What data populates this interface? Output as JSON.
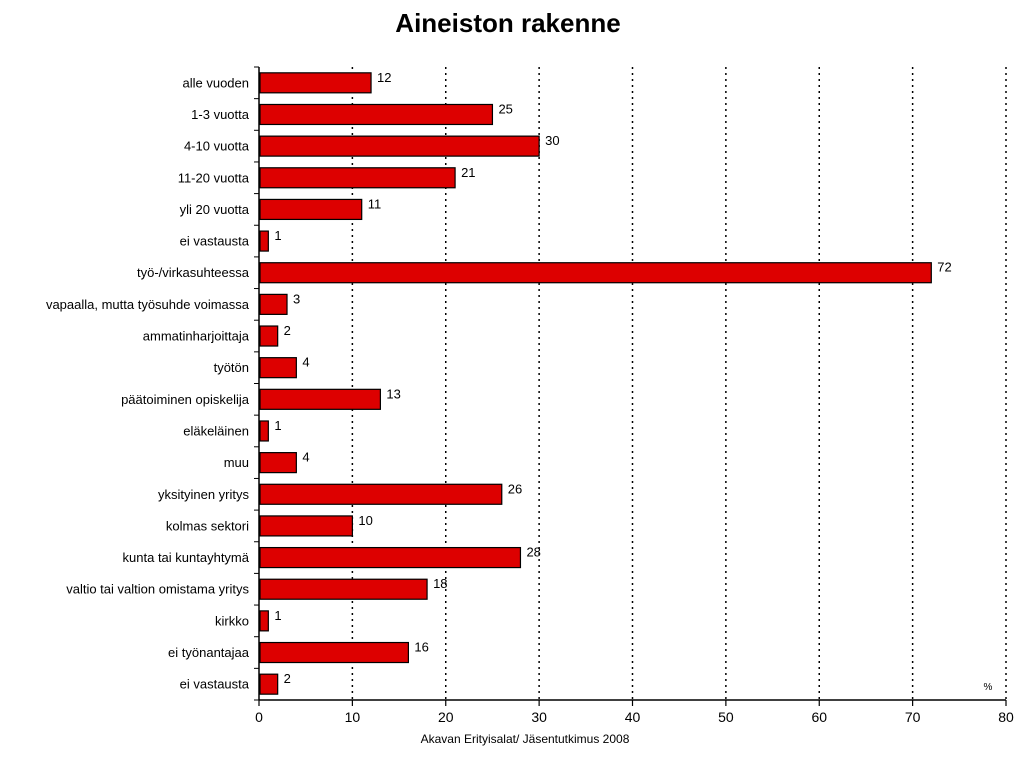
{
  "title": "Aineiston rakenne",
  "source": "Akavan Erityisalat/ Jäsentutkimus 2008",
  "chart_data": {
    "type": "bar",
    "orientation": "horizontal",
    "title": "Aineiston rakenne",
    "unit": "%",
    "xlim": [
      0,
      80
    ],
    "x_ticks": [
      0,
      10,
      20,
      30,
      40,
      50,
      60,
      70,
      80
    ],
    "grid": "vertical dotted",
    "bar_color": "#dd0000",
    "categories": [
      "alle vuoden",
      "1-3 vuotta",
      "4-10 vuotta",
      "11-20 vuotta",
      "yli 20 vuotta",
      "ei vastausta",
      "työ-/virkasuhteessa",
      "vapaalla, mutta työsuhde voimassa",
      "ammatinharjoittaja",
      "työtön",
      "päätoiminen opiskelija",
      "eläkeläinen",
      "muu",
      "yksityinen yritys",
      "kolmas sektori",
      "kunta tai kuntayhtymä",
      "valtio tai valtion omistama yritys",
      "kirkko",
      "ei työnantajaa",
      "ei vastausta"
    ],
    "values": [
      12,
      25,
      30,
      21,
      11,
      1,
      72,
      3,
      2,
      4,
      13,
      1,
      4,
      26,
      10,
      28,
      18,
      1,
      16,
      2
    ]
  }
}
